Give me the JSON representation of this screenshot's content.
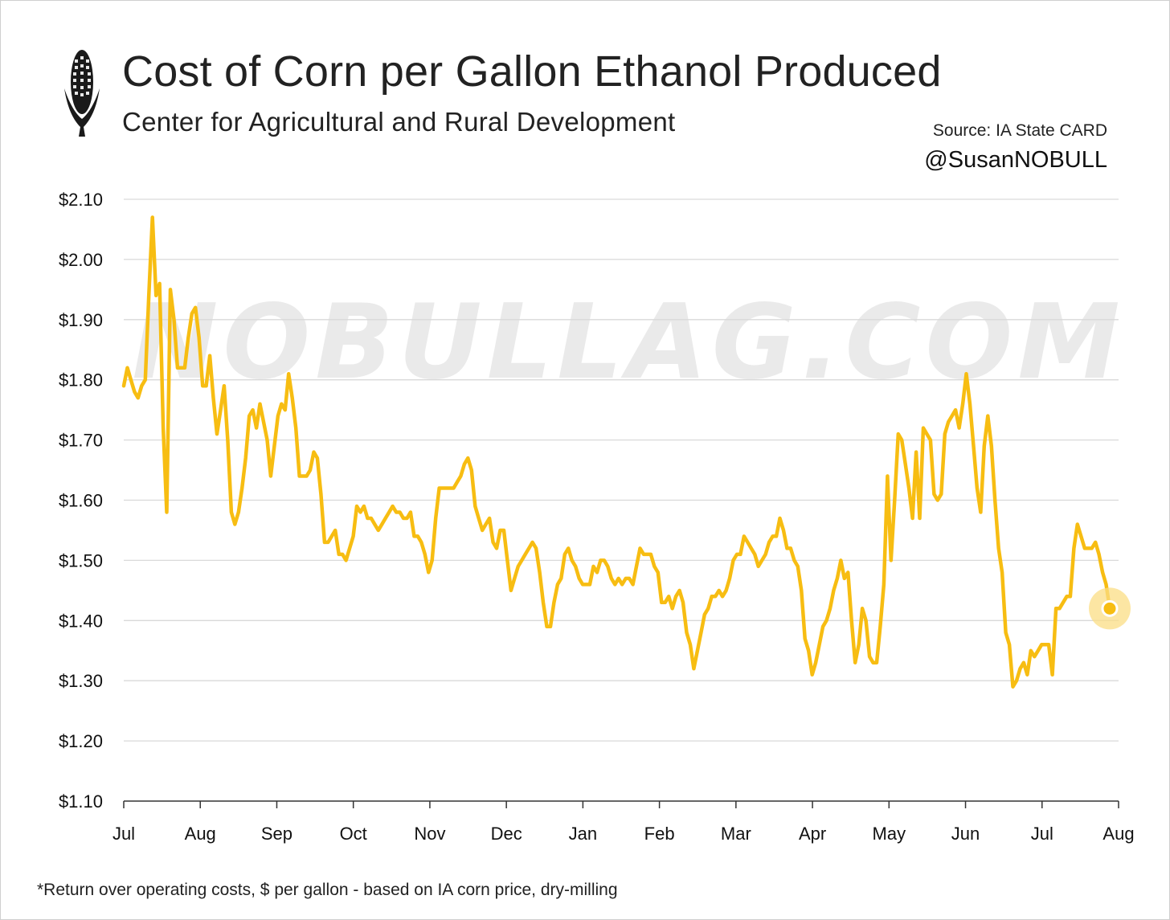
{
  "header": {
    "title": "Cost of Corn per Gallon Ethanol Produced",
    "subtitle": "Center for Agricultural and Rural Development",
    "source": "Source: IA State CARD",
    "handle": "@SusanNOBULL",
    "logo_icon": "corn-cob-icon"
  },
  "watermark": "NOBULLAG.COM",
  "footnote": "*Return over operating costs, $ per gallon - based on IA corn price, dry-milling",
  "colors": {
    "line": "#F7BD12",
    "marker_halo": "#FBDD84",
    "grid": "#d9d9d9",
    "axis": "#333333"
  },
  "chart_data": {
    "type": "line",
    "title": "Cost of Corn per Gallon Ethanol Produced",
    "xlabel": "",
    "ylabel": "",
    "ylim": [
      1.1,
      2.1
    ],
    "y_ticks": [
      1.1,
      1.2,
      1.3,
      1.4,
      1.5,
      1.6,
      1.7,
      1.8,
      1.9,
      2.0,
      2.1
    ],
    "y_tick_labels": [
      "$1.10",
      "$1.20",
      "$1.30",
      "$1.40",
      "$1.50",
      "$1.60",
      "$1.70",
      "$1.80",
      "$1.90",
      "$2.00",
      "$2.10"
    ],
    "x_tick_labels": [
      "Jul",
      "Aug",
      "Sep",
      "Oct",
      "Nov",
      "Dec",
      "Jan",
      "Feb",
      "Mar",
      "Apr",
      "May",
      "Jun",
      "Jul",
      "Aug"
    ],
    "grid": "horizontal",
    "legend": "none",
    "end_marker": "highlighted last point",
    "series": [
      {
        "values": [
          1.79,
          1.82,
          1.8,
          1.78,
          1.77,
          1.79,
          1.8,
          1.94,
          2.07,
          1.94,
          1.96,
          1.72,
          1.58,
          1.95,
          1.9,
          1.82,
          1.82,
          1.82,
          1.87,
          1.91,
          1.92,
          1.87,
          1.79,
          1.79,
          1.84,
          1.77,
          1.71,
          1.75,
          1.79,
          1.7,
          1.58,
          1.56,
          1.58,
          1.62,
          1.67,
          1.74,
          1.75,
          1.72,
          1.76,
          1.73,
          1.7,
          1.64,
          1.69,
          1.74,
          1.76,
          1.75,
          1.81,
          1.77,
          1.72,
          1.64,
          1.64,
          1.64,
          1.65,
          1.68,
          1.67,
          1.61,
          1.53,
          1.53,
          1.54,
          1.55,
          1.51,
          1.51,
          1.5,
          1.52,
          1.54,
          1.59,
          1.58,
          1.59,
          1.57,
          1.57,
          1.56,
          1.55,
          1.56,
          1.57,
          1.58,
          1.59,
          1.58,
          1.58,
          1.57,
          1.57,
          1.58,
          1.54,
          1.54,
          1.53,
          1.51,
          1.48,
          1.5,
          1.57,
          1.62,
          1.62,
          1.62,
          1.62,
          1.62,
          1.63,
          1.64,
          1.66,
          1.67,
          1.65,
          1.59,
          1.57,
          1.55,
          1.56,
          1.57,
          1.53,
          1.52,
          1.55,
          1.55,
          1.5,
          1.45,
          1.47,
          1.49,
          1.5,
          1.51,
          1.52,
          1.53,
          1.52,
          1.48,
          1.43,
          1.39,
          1.39,
          1.43,
          1.46,
          1.47,
          1.51,
          1.52,
          1.5,
          1.49,
          1.47,
          1.46,
          1.46,
          1.46,
          1.49,
          1.48,
          1.5,
          1.5,
          1.49,
          1.47,
          1.46,
          1.47,
          1.46,
          1.47,
          1.47,
          1.46,
          1.49,
          1.52,
          1.51,
          1.51,
          1.51,
          1.49,
          1.48,
          1.43,
          1.43,
          1.44,
          1.42,
          1.44,
          1.45,
          1.43,
          1.38,
          1.36,
          1.32,
          1.35,
          1.38,
          1.41,
          1.42,
          1.44,
          1.44,
          1.45,
          1.44,
          1.45,
          1.47,
          1.5,
          1.51,
          1.51,
          1.54,
          1.53,
          1.52,
          1.51,
          1.49,
          1.5,
          1.51,
          1.53,
          1.54,
          1.54,
          1.57,
          1.55,
          1.52,
          1.52,
          1.5,
          1.49,
          1.45,
          1.37,
          1.35,
          1.31,
          1.33,
          1.36,
          1.39,
          1.4,
          1.42,
          1.45,
          1.47,
          1.5,
          1.47,
          1.48,
          1.4,
          1.33,
          1.36,
          1.42,
          1.4,
          1.34,
          1.33,
          1.33,
          1.39,
          1.46,
          1.64,
          1.5,
          1.6,
          1.71,
          1.7,
          1.66,
          1.62,
          1.57,
          1.68,
          1.57,
          1.72,
          1.71,
          1.7,
          1.61,
          1.6,
          1.61,
          1.71,
          1.73,
          1.74,
          1.75,
          1.72,
          1.76,
          1.81,
          1.76,
          1.69,
          1.62,
          1.58,
          1.69,
          1.74,
          1.69,
          1.6,
          1.52,
          1.48,
          1.38,
          1.36,
          1.29,
          1.3,
          1.32,
          1.33,
          1.31,
          1.35,
          1.34,
          1.35,
          1.36,
          1.36,
          1.36,
          1.31,
          1.42,
          1.42,
          1.43,
          1.44,
          1.44,
          1.52,
          1.56,
          1.54,
          1.52,
          1.52,
          1.52,
          1.53,
          1.51,
          1.48,
          1.46,
          1.42
        ]
      }
    ]
  }
}
